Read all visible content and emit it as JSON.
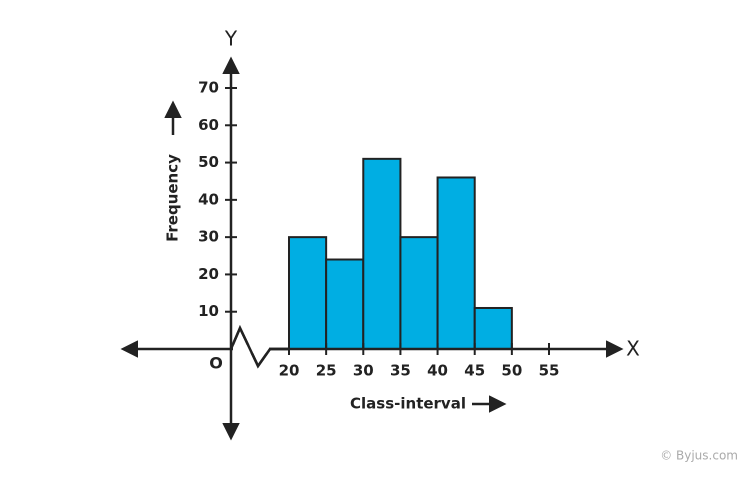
{
  "chart_data": {
    "type": "histogram",
    "y_axis_letter": "Y",
    "x_axis_letter": "X",
    "origin_label": "O",
    "ylabel": "Frequency",
    "xlabel": "Class-interval",
    "bins": [
      20,
      25,
      30,
      35,
      40,
      45,
      50
    ],
    "values": [
      30,
      24,
      51,
      30,
      46,
      11
    ],
    "color": "#00aee3",
    "xlim": [
      20,
      55
    ],
    "xticks": [
      20,
      25,
      30,
      35,
      40,
      45,
      50,
      55
    ],
    "ylim": [
      0,
      70
    ],
    "yticks": [
      10,
      20,
      30,
      40,
      50,
      60,
      70
    ],
    "watermark": "© Byjus.com"
  }
}
